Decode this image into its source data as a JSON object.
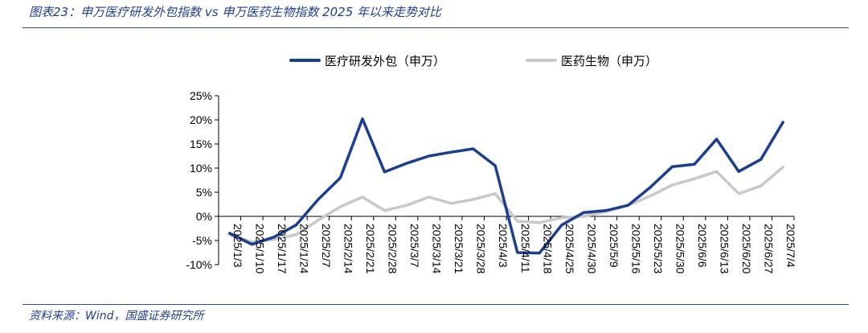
{
  "header": {
    "title": "图表23：申万医疗研发外包指数 vs 申万医药生物指数 2025 年以来走势对比"
  },
  "footer": {
    "source": "资料来源：Wind，国盛证券研究所"
  },
  "colors": {
    "rule": "#2a4fa0",
    "title_text": "#1f3f8f",
    "axis": "#000000"
  },
  "chart_data": {
    "type": "line",
    "title": "",
    "xlabel": "",
    "ylabel": "",
    "ylim": [
      -10,
      25
    ],
    "yticks": [
      -10,
      -5,
      0,
      5,
      10,
      15,
      20,
      25
    ],
    "ytick_labels": [
      "-10%",
      "-5%",
      "0%",
      "5%",
      "10%",
      "15%",
      "20%",
      "25%"
    ],
    "grid": false,
    "legend_position": "top",
    "categories": [
      "2025/1/3",
      "2025/1/10",
      "2025/1/17",
      "2025/1/24",
      "2025/2/7",
      "2025/2/14",
      "2025/2/21",
      "2025/2/28",
      "2025/3/7",
      "2025/3/14",
      "2025/3/21",
      "2025/3/28",
      "2025/4/3",
      "2025/4/11",
      "2025/4/18",
      "2025/4/25",
      "2025/4/30",
      "2025/5/9",
      "2025/5/16",
      "2025/5/23",
      "2025/5/30",
      "2025/6/6",
      "2025/6/13",
      "2025/6/20",
      "2025/6/27",
      "2025/7/4"
    ],
    "series": [
      {
        "name": "医疗研发外包（申万）",
        "color": "#1a3f8f",
        "values": [
          -3.5,
          -5.8,
          -4.3,
          -1.8,
          3.5,
          8.0,
          20.2,
          9.2,
          11.0,
          12.5,
          13.3,
          14.0,
          10.5,
          -7.5,
          -7.6,
          -1.8,
          0.8,
          1.2,
          2.3,
          6.0,
          10.3,
          10.8,
          16.0,
          9.3,
          11.8,
          19.5
        ]
      },
      {
        "name": "医药生物（申万）",
        "color": "#c8c8c8",
        "values": [
          -3.8,
          -5.3,
          -4.8,
          -3.8,
          -0.8,
          2.0,
          4.0,
          1.2,
          2.3,
          4.0,
          2.7,
          3.5,
          4.7,
          -1.0,
          -1.3,
          -0.3,
          0.0,
          1.0,
          2.3,
          4.2,
          6.5,
          7.8,
          9.3,
          4.7,
          6.3,
          10.2
        ]
      }
    ]
  }
}
